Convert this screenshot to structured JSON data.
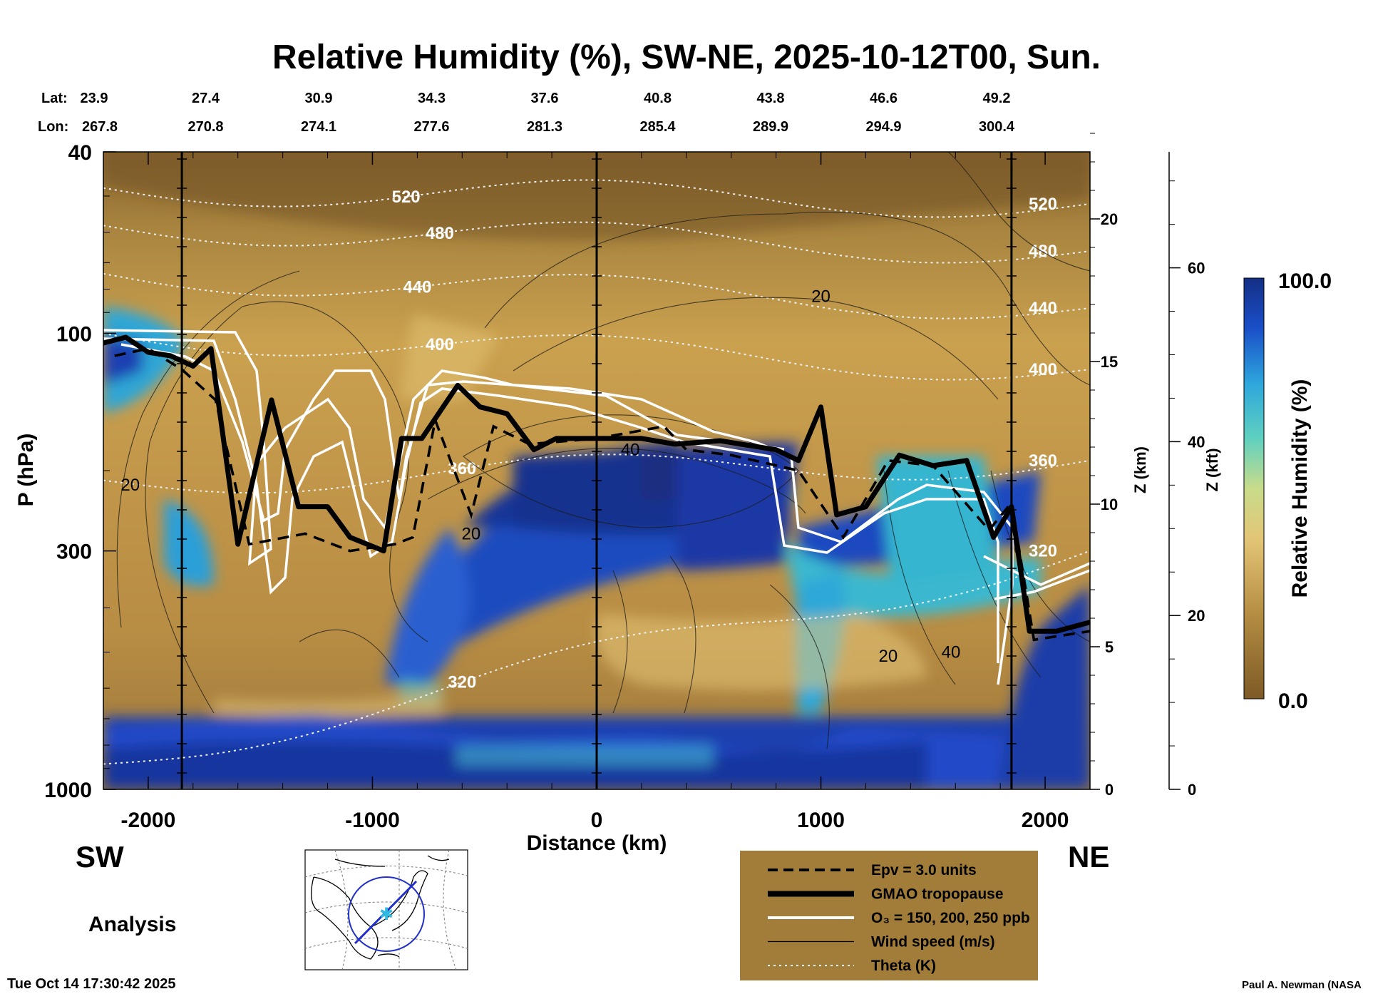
{
  "chart_data": {
    "type": "heatmap",
    "title": "Relative Humidity (%), SW-NE, 2025-10-12T00, Sun.",
    "xlabel": "Distance (km)",
    "ylabel": "P (hPa)",
    "xlim": [
      -2200,
      2200
    ],
    "ylim_hpa": [
      1000,
      40
    ],
    "x_ticks": [
      -2000,
      -1000,
      0,
      1000,
      2000
    ],
    "x_tick_labels": [
      "-2000",
      "-1000",
      "0",
      "1000",
      "2000"
    ],
    "y_ticks": [
      40,
      100,
      300,
      1000
    ],
    "y_tick_labels": [
      "40",
      "100",
      "300",
      "1000"
    ],
    "z_km": {
      "label": "Z (km)",
      "ticks": [
        0,
        5,
        10,
        15,
        20
      ],
      "tick_labels": [
        "0",
        "5",
        "10",
        "15",
        "20"
      ]
    },
    "z_kft": {
      "label": "Z (kft)",
      "ticks": [
        0,
        20,
        40,
        60
      ],
      "tick_labels": [
        "0",
        "20",
        "40",
        "60"
      ]
    },
    "lat_label": "Lat:",
    "lon_label": "Lon:",
    "lat": [
      "23.9",
      "27.4",
      "30.9",
      "34.3",
      "37.6",
      "40.8",
      "43.8",
      "46.6",
      "49.2"
    ],
    "lon": [
      "267.8",
      "270.8",
      "274.1",
      "277.6",
      "281.3",
      "285.4",
      "289.9",
      "294.9",
      "300.4"
    ],
    "vertical_markers_km": [
      -1850,
      0,
      1850
    ],
    "theta_levels_K": [
      {
        "value": 320,
        "label": "320",
        "p_sw": 880,
        "p_ne": 300,
        "label_x": -600
      },
      {
        "value": 360,
        "label": "360",
        "p_sw": 210,
        "p_ne": 190,
        "label_x": -600
      },
      {
        "value": 400,
        "label": "400",
        "p_sw": 100,
        "p_ne": 120,
        "label_x": -700
      },
      {
        "value": 440,
        "label": "440",
        "p_sw": 74,
        "p_ne": 88,
        "label_x": -800
      },
      {
        "value": 480,
        "label": "480",
        "p_sw": 58,
        "p_ne": 66,
        "label_x": -700
      },
      {
        "value": 520,
        "label": "520",
        "p_sw": 48,
        "p_ne": 52,
        "label_x": -850
      }
    ],
    "wind_labels": [
      {
        "text": "20",
        "x": -2080,
        "p": 215
      },
      {
        "text": "20",
        "x": 1000,
        "p": 83
      },
      {
        "text": "20",
        "x": -560,
        "p": 275
      },
      {
        "text": "40",
        "x": 150,
        "p": 180
      },
      {
        "text": "20",
        "x": 1300,
        "p": 510
      },
      {
        "text": "40",
        "x": 1580,
        "p": 500
      }
    ],
    "tropopause_gmao": [
      [
        -2200,
        105
      ],
      [
        -2100,
        102
      ],
      [
        -2000,
        110
      ],
      [
        -1900,
        112
      ],
      [
        -1800,
        118
      ],
      [
        -1720,
        108
      ],
      [
        -1600,
        290
      ],
      [
        -1450,
        140
      ],
      [
        -1330,
        240
      ],
      [
        -1200,
        240
      ],
      [
        -1100,
        280
      ],
      [
        -950,
        300
      ],
      [
        -870,
        170
      ],
      [
        -780,
        170
      ],
      [
        -620,
        130
      ],
      [
        -520,
        145
      ],
      [
        -400,
        150
      ],
      [
        -280,
        180
      ],
      [
        -180,
        170
      ],
      [
        0,
        170
      ],
      [
        200,
        170
      ],
      [
        350,
        175
      ],
      [
        550,
        172
      ],
      [
        800,
        180
      ],
      [
        900,
        190
      ],
      [
        1000,
        145
      ],
      [
        1070,
        250
      ],
      [
        1200,
        240
      ],
      [
        1350,
        185
      ],
      [
        1500,
        195
      ],
      [
        1650,
        190
      ],
      [
        1770,
        280
      ],
      [
        1850,
        240
      ],
      [
        1930,
        450
      ],
      [
        2050,
        450
      ],
      [
        2200,
        430
      ]
    ],
    "epv_3pvu": [
      [
        -2150,
        112
      ],
      [
        -2000,
        108
      ],
      [
        -1850,
        120
      ],
      [
        -1700,
        140
      ],
      [
        -1550,
        290
      ],
      [
        -1300,
        275
      ],
      [
        -1100,
        300
      ],
      [
        -900,
        290
      ],
      [
        -820,
        280
      ],
      [
        -720,
        155
      ],
      [
        -560,
        250
      ],
      [
        -460,
        160
      ],
      [
        -300,
        175
      ],
      [
        0,
        170
      ],
      [
        300,
        160
      ],
      [
        400,
        180
      ],
      [
        600,
        185
      ],
      [
        900,
        200
      ],
      [
        1100,
        280
      ],
      [
        1300,
        190
      ],
      [
        1500,
        195
      ],
      [
        1750,
        270
      ],
      [
        1850,
        235
      ],
      [
        1950,
        470
      ],
      [
        2200,
        450
      ]
    ],
    "o3_contours_ppb": [
      150,
      200,
      250
    ],
    "colorbar": {
      "label": "Relative Humidity (%)",
      "min": 0.0,
      "max": 100.0,
      "min_label": "0.0",
      "max_label": "100.0"
    },
    "colors": {
      "dry": "#7d5a26",
      "tan": "#d4ac55",
      "wet": "#1a3fa0",
      "cyan": "#3ab7c8",
      "legend_bg": "#a27d39"
    }
  },
  "direction_labels": {
    "left": "SW",
    "right": "NE"
  },
  "analysis_label": "Analysis",
  "legend": [
    {
      "label": "Epv = 3.0 units",
      "style": "dashed"
    },
    {
      "label": "GMAO tropopause",
      "style": "thick"
    },
    {
      "label": "O₃ = 150, 200, 250 ppb",
      "style": "white"
    },
    {
      "label": "Wind speed (m/s)",
      "style": "thin"
    },
    {
      "label": "Theta (K)",
      "style": "dotted"
    }
  ],
  "timestamp": "Tue Oct 14 17:30:42 2025",
  "credit": "Paul A. Newman (NASA"
}
